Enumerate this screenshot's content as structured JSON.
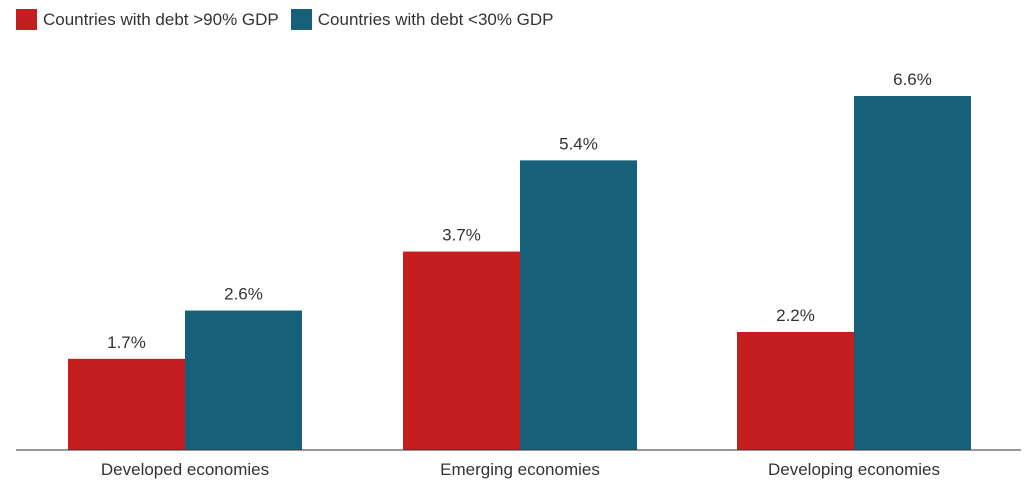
{
  "chart_data": {
    "type": "bar",
    "title": "",
    "xlabel": "",
    "ylabel": "",
    "categories": [
      "Developed economies",
      "Emerging economies",
      "Developing economies"
    ],
    "series": [
      {
        "name": "Countries with debt >90% GDP",
        "color": "#c41e20",
        "values": [
          1.7,
          3.7,
          2.2
        ],
        "labels": [
          "1.7%",
          "3.7%",
          "2.2%"
        ]
      },
      {
        "name": "Countries with debt <30% GDP",
        "color": "#17607a",
        "values": [
          2.6,
          5.4,
          6.6
        ],
        "labels": [
          "2.6%",
          "5.4%",
          "6.6%"
        ]
      }
    ],
    "ylim": [
      0,
      7
    ],
    "grid": false,
    "legend_position": "top-left"
  }
}
